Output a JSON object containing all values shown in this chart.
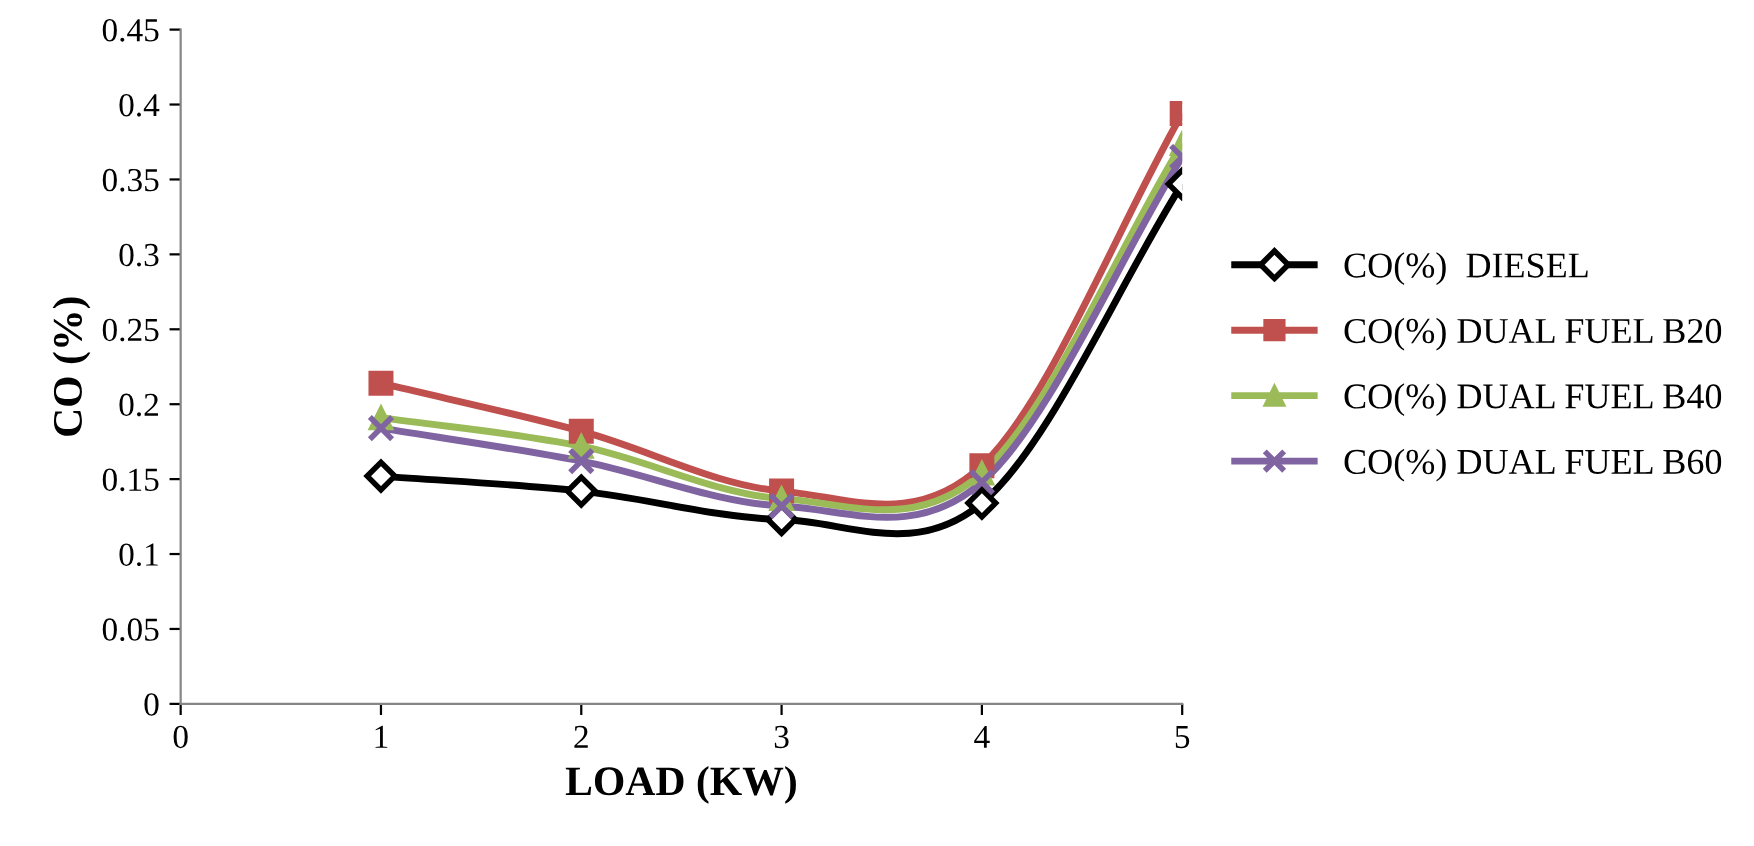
{
  "chart_data": {
    "type": "line",
    "xlabel": "LOAD (KW)",
    "ylabel": "CO (%)",
    "x": [
      1,
      2,
      3,
      4,
      5
    ],
    "series": [
      {
        "name": "CO(%)  DIESEL",
        "color": "#000000",
        "marker": "diamond",
        "values": [
          0.152,
          0.142,
          0.123,
          0.134,
          0.347
        ]
      },
      {
        "name": "CO(%) DUAL FUEL B20",
        "color": "#c0504d",
        "marker": "square",
        "values": [
          0.214,
          0.182,
          0.142,
          0.159,
          0.394
        ]
      },
      {
        "name": "CO(%) DUAL FUEL B40",
        "color": "#9bbb59",
        "marker": "triangle",
        "values": [
          0.191,
          0.172,
          0.137,
          0.154,
          0.374
        ]
      },
      {
        "name": "CO(%) DUAL FUEL B60",
        "color": "#8064a2",
        "marker": "cross",
        "values": [
          0.184,
          0.162,
          0.132,
          0.148,
          0.365
        ]
      }
    ],
    "xlim": [
      0,
      5
    ],
    "xticks": [
      0,
      1,
      2,
      3,
      4,
      5
    ],
    "ylim": [
      0,
      0.45
    ],
    "yticks": [
      0,
      0.05,
      0.1,
      0.15,
      0.2,
      0.25,
      0.3,
      0.35,
      0.4,
      0.45
    ],
    "grid": false,
    "legend": "right",
    "line_style": "solid"
  }
}
